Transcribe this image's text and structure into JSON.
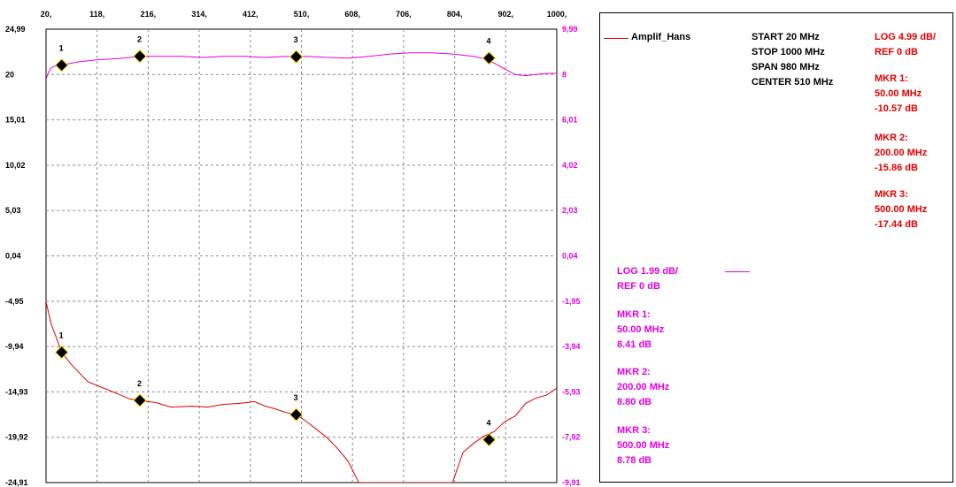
{
  "chart_data": {
    "type": "line",
    "x": {
      "ticks": [
        "20,",
        "118,",
        "216,",
        "314,",
        "412,",
        "510,",
        "608,",
        "706,",
        "804,",
        "902,",
        "1000,"
      ],
      "range": [
        20,
        1000
      ],
      "unit": "MHz"
    },
    "y_left": {
      "ticks": [
        "24,99",
        "20",
        "15,01",
        "10,02",
        "5,03",
        "0,04",
        "-4,95",
        "-9,94",
        "-14,93",
        "-19,92",
        "-24,91"
      ],
      "range": [
        -24.91,
        24.99
      ],
      "scale": "linear"
    },
    "y_right": {
      "ticks": [
        "9,99",
        "8",
        "6,01",
        "4,02",
        "2,03",
        "0,04",
        "-1,95",
        "-3,94",
        "-5,93",
        "-7,92",
        "-9,91"
      ],
      "range": [
        -9.91,
        9.99
      ],
      "scale": "linear"
    },
    "grid": true,
    "series": [
      {
        "name": "Amplif_Hans",
        "color": "#e00000",
        "axis": "left",
        "x": [
          20,
          30,
          40,
          50,
          70,
          100,
          130,
          160,
          180,
          200,
          230,
          260,
          300,
          330,
          360,
          390,
          420,
          440,
          460,
          480,
          500,
          520,
          540,
          560,
          580,
          600,
          620,
          640,
          660,
          680,
          700,
          720,
          740,
          760,
          780,
          800,
          820,
          840,
          860,
          880,
          900,
          920,
          940,
          960,
          980,
          1000
        ],
        "y": [
          -5.0,
          -7.5,
          -9.0,
          -10.6,
          -12.0,
          -13.8,
          -14.5,
          -15.2,
          -15.7,
          -15.9,
          -16.1,
          -16.6,
          -16.5,
          -16.6,
          -16.3,
          -16.2,
          -16.0,
          -16.5,
          -16.8,
          -17.2,
          -17.4,
          -18.2,
          -19.1,
          -20.0,
          -21.2,
          -22.6,
          -24.91,
          -24.91,
          -24.91,
          -24.91,
          -24.91,
          -24.91,
          -24.91,
          -24.91,
          -24.91,
          -24.91,
          -21.6,
          -20.6,
          -19.8,
          -19.3,
          -18.2,
          -17.6,
          -16.2,
          -15.6,
          -15.3,
          -14.5
        ]
      },
      {
        "name": "",
        "color": "#e000e0",
        "axis": "right",
        "x": [
          20,
          25,
          30,
          40,
          50,
          80,
          120,
          160,
          200,
          240,
          280,
          320,
          360,
          400,
          440,
          480,
          500,
          520,
          560,
          600,
          640,
          680,
          720,
          760,
          800,
          840,
          860,
          880,
          900,
          920,
          940,
          960,
          980,
          1000
        ],
        "y": [
          7.8,
          8.1,
          8.3,
          8.4,
          8.41,
          8.55,
          8.65,
          8.7,
          8.8,
          8.8,
          8.8,
          8.75,
          8.8,
          8.8,
          8.75,
          8.8,
          8.78,
          8.8,
          8.75,
          8.72,
          8.8,
          8.9,
          8.95,
          8.95,
          8.9,
          8.8,
          8.7,
          8.5,
          8.25,
          8.0,
          7.95,
          8.0,
          8.05,
          8.05
        ]
      }
    ],
    "markers": [
      {
        "label": "1",
        "x": 50,
        "y_left": -10.57,
        "y_right": 8.41
      },
      {
        "label": "2",
        "x": 200,
        "y_left": -15.86,
        "y_right": 8.8
      },
      {
        "label": "3",
        "x": 500,
        "y_left": -17.44,
        "y_right": 8.78
      },
      {
        "label": "4",
        "x": 870,
        "y_left": -20.2,
        "y_right": 8.72
      }
    ]
  },
  "legend": {
    "trace1_name": "Amplif_Hans",
    "sweep": [
      "START 20 MHz",
      "STOP 1000 MHz",
      "SPAN 980 MHz",
      "CENTER 510 MHz"
    ],
    "red": {
      "scale": "LOG 4.99 dB/",
      "ref": "REF 0 dB",
      "markers": [
        {
          "title": "MKR 1:",
          "freq": "50.00 MHz",
          "value": "-10.57 dB"
        },
        {
          "title": "MKR 2:",
          "freq": "200.00 MHz",
          "value": "-15.86 dB"
        },
        {
          "title": "MKR 3:",
          "freq": "500.00 MHz",
          "value": "-17.44 dB"
        }
      ]
    },
    "magenta": {
      "scale": "LOG 1.99 dB/",
      "ref": "REF 0 dB",
      "markers": [
        {
          "title": "MKR 1:",
          "freq": "50.00 MHz",
          "value": "8.41 dB"
        },
        {
          "title": "MKR 2:",
          "freq": "200.00 MHz",
          "value": "8.80 dB"
        },
        {
          "title": "MKR 3:",
          "freq": "500.00 MHz",
          "value": "8.78 dB"
        }
      ]
    }
  },
  "colors": {
    "red": "#e00000",
    "magenta": "#e000e0",
    "grid": "#8c8c8c",
    "frame": "#000000"
  }
}
